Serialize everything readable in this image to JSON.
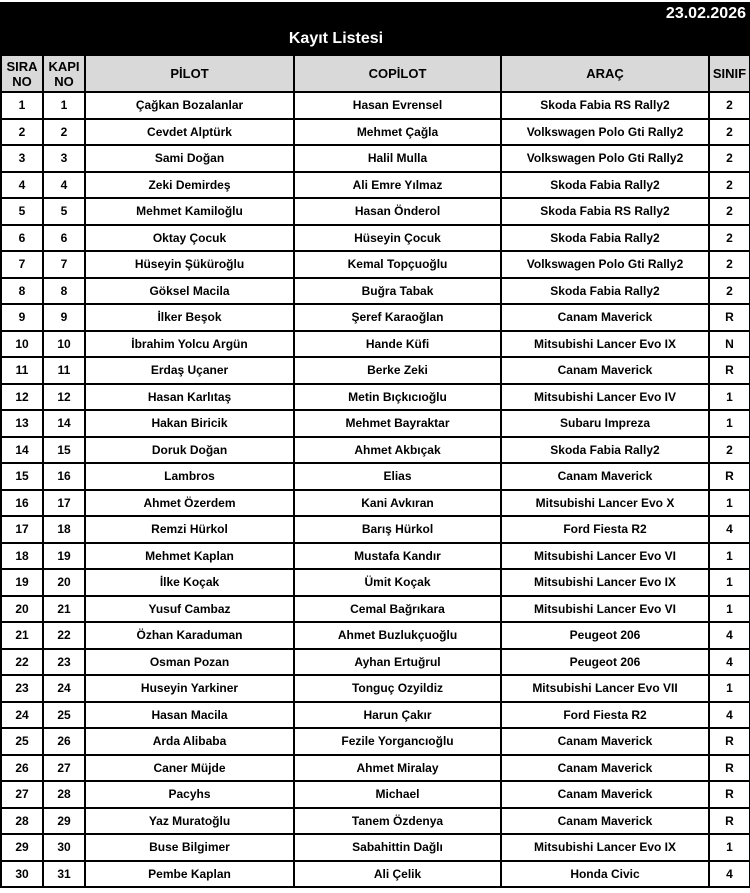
{
  "header": {
    "date": "23.02.2026",
    "title": "Kayıt Listesi"
  },
  "columns": {
    "sira_1": "SIRA",
    "sira_2": "NO",
    "kapi_1": "KAPI",
    "kapi_2": "NO",
    "pilot": "PİLOT",
    "copilot": "COPİLOT",
    "arac": "ARAÇ",
    "sinif": "SINIF"
  },
  "rows": [
    [
      "1",
      "1",
      "Çağkan Bozalanlar",
      "Hasan Evrensel",
      "Skoda Fabia RS Rally2",
      "2"
    ],
    [
      "2",
      "2",
      "Cevdet Alptürk",
      "Mehmet Çağla",
      "Volkswagen Polo Gti Rally2",
      "2"
    ],
    [
      "3",
      "3",
      "Sami Doğan",
      "Halil Mulla",
      "Volkswagen Polo Gti Rally2",
      "2"
    ],
    [
      "4",
      "4",
      "Zeki Demirdeş",
      "Ali Emre Yılmaz",
      "Skoda Fabia Rally2",
      "2"
    ],
    [
      "5",
      "5",
      "Mehmet Kamiloğlu",
      "Hasan Önderol",
      "Skoda Fabia RS Rally2",
      "2"
    ],
    [
      "6",
      "6",
      "Oktay Çocuk",
      "Hüseyin Çocuk",
      "Skoda Fabia Rally2",
      "2"
    ],
    [
      "7",
      "7",
      "Hüseyin Şükürоğlu",
      "Kemal Topçuoğlu",
      "Volkswagen Polo Gti Rally2",
      "2"
    ],
    [
      "8",
      "8",
      "Göksel Macila",
      "Buğra Tabak",
      "Skoda Fabia Rally2",
      "2"
    ],
    [
      "9",
      "9",
      "İlker Beşok",
      "Şeref Karaoğlan",
      "Canam Maverick",
      "R"
    ],
    [
      "10",
      "10",
      "İbrahim Yolcu Argün",
      "Hande Küfi",
      "Mitsubishi Lancer Evo IX",
      "N"
    ],
    [
      "11",
      "11",
      "Erdaş Uçaner",
      "Berke Zeki",
      "Canam Maverick",
      "R"
    ],
    [
      "12",
      "12",
      "Hasan Karlıtaş",
      "Metin Bıçkıcıoğlu",
      "Mitsubishi Lancer Evo IV",
      "1"
    ],
    [
      "13",
      "14",
      "Hakan Biricik",
      "Mehmet Bayraktar",
      "Subaru Impreza",
      "1"
    ],
    [
      "14",
      "15",
      "Doruk Doğan",
      "Ahmet Akbıçak",
      "Skoda Fabia Rally2",
      "2"
    ],
    [
      "15",
      "16",
      "Lambros",
      "Elias",
      "Canam Maverick",
      "R"
    ],
    [
      "16",
      "17",
      "Ahmet Özerdem",
      "Kani Avkıran",
      "Mitsubishi Lancer Evo X",
      "1"
    ],
    [
      "17",
      "18",
      "Remzi Hürkol",
      "Barış Hürkol",
      "Ford Fiesta R2",
      "4"
    ],
    [
      "18",
      "19",
      "Mehmet Kaplan",
      "Mustafa Kandır",
      "Mitsubishi Lancer Evo VI",
      "1"
    ],
    [
      "19",
      "20",
      "İlke Koçak",
      "Ümit Koçak",
      "Mitsubishi Lancer Evo IX",
      "1"
    ],
    [
      "20",
      "21",
      "Yusuf Cambaz",
      "Cemal Bağrıkara",
      "Mitsubishi Lancer Evo VI",
      "1"
    ],
    [
      "21",
      "22",
      "Özhan Karaduman",
      "Ahmet Buzlukçuoğlu",
      "Peugeot 206",
      "4"
    ],
    [
      "22",
      "23",
      "Osman Pozan",
      "Ayhan Ertuğrul",
      "Peugeot 206",
      "4"
    ],
    [
      "23",
      "24",
      "Huseyin Yarkiner",
      "Tonguç Ozyildiz",
      "Mitsubishi Lancer Evo VII",
      "1"
    ],
    [
      "24",
      "25",
      "Hasan Macila",
      "Harun Çakır",
      "Ford Fiesta R2",
      "4"
    ],
    [
      "25",
      "26",
      "Arda Alibaba",
      "Fezile Yorgancıoğlu",
      "Canam Maverick",
      "R"
    ],
    [
      "26",
      "27",
      "Caner Müjde",
      "Ahmet Miralay",
      "Canam Maverick",
      "R"
    ],
    [
      "27",
      "28",
      "Pacyhs",
      "Michael",
      "Canam Maverick",
      "R"
    ],
    [
      "28",
      "29",
      "Yaz Muratoğlu",
      "Tanem Özdenya",
      "Canam Maverick",
      "R"
    ],
    [
      "29",
      "30",
      "Buse Bilgimer",
      "Sabahittin Dağlı",
      "Mitsubishi Lancer Evo IX",
      "1"
    ],
    [
      "30",
      "31",
      "Pembe Kaplan",
      "Ali Çelik",
      "Honda Civic",
      "4"
    ]
  ]
}
